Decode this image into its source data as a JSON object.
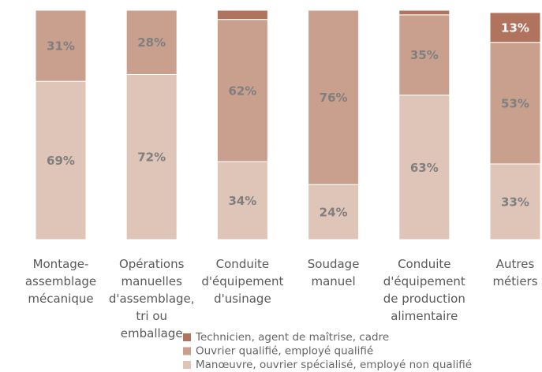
{
  "chart_data": {
    "type": "stacked_bar",
    "categories": [
      "Montage-\nassemblage\nmécanique",
      "Opérations\nmanuelles\nd'assemblage,\ntri ou\nemballage",
      "Conduite\nd'équipement\nd'usinage",
      "Soudage\nmanuel",
      "Conduite\nd'équipement\nde production\nalimentaire",
      "Autres\nmétiers"
    ],
    "ylim": [
      0,
      100
    ],
    "series": [
      {
        "name": "Manœuvre, ouvrier spécialisé, employé non qualifié",
        "color": "#dfc4b8",
        "label_color": "#7f7f7f",
        "values": [
          69,
          72,
          34,
          24,
          63,
          33
        ],
        "value_labels": [
          "69%",
          "72%",
          "34%",
          "24%",
          "63%",
          "33%"
        ]
      },
      {
        "name": "Ouvrier qualifié, employé qualifié",
        "color": "#c9a08e",
        "label_color": "#7f7f7f",
        "values": [
          31,
          28,
          62,
          76,
          35,
          53
        ],
        "value_labels": [
          "31%",
          "28%",
          "62%",
          "76%",
          "35%",
          "53%"
        ]
      },
      {
        "name": "Technicien, agent de maîtrise, cadre",
        "color": "#b0735d",
        "label_color": "#ffffff",
        "values": [
          0,
          0,
          4,
          0,
          2,
          13
        ],
        "value_labels": [
          null,
          null,
          null,
          null,
          null,
          "13%"
        ]
      }
    ]
  }
}
